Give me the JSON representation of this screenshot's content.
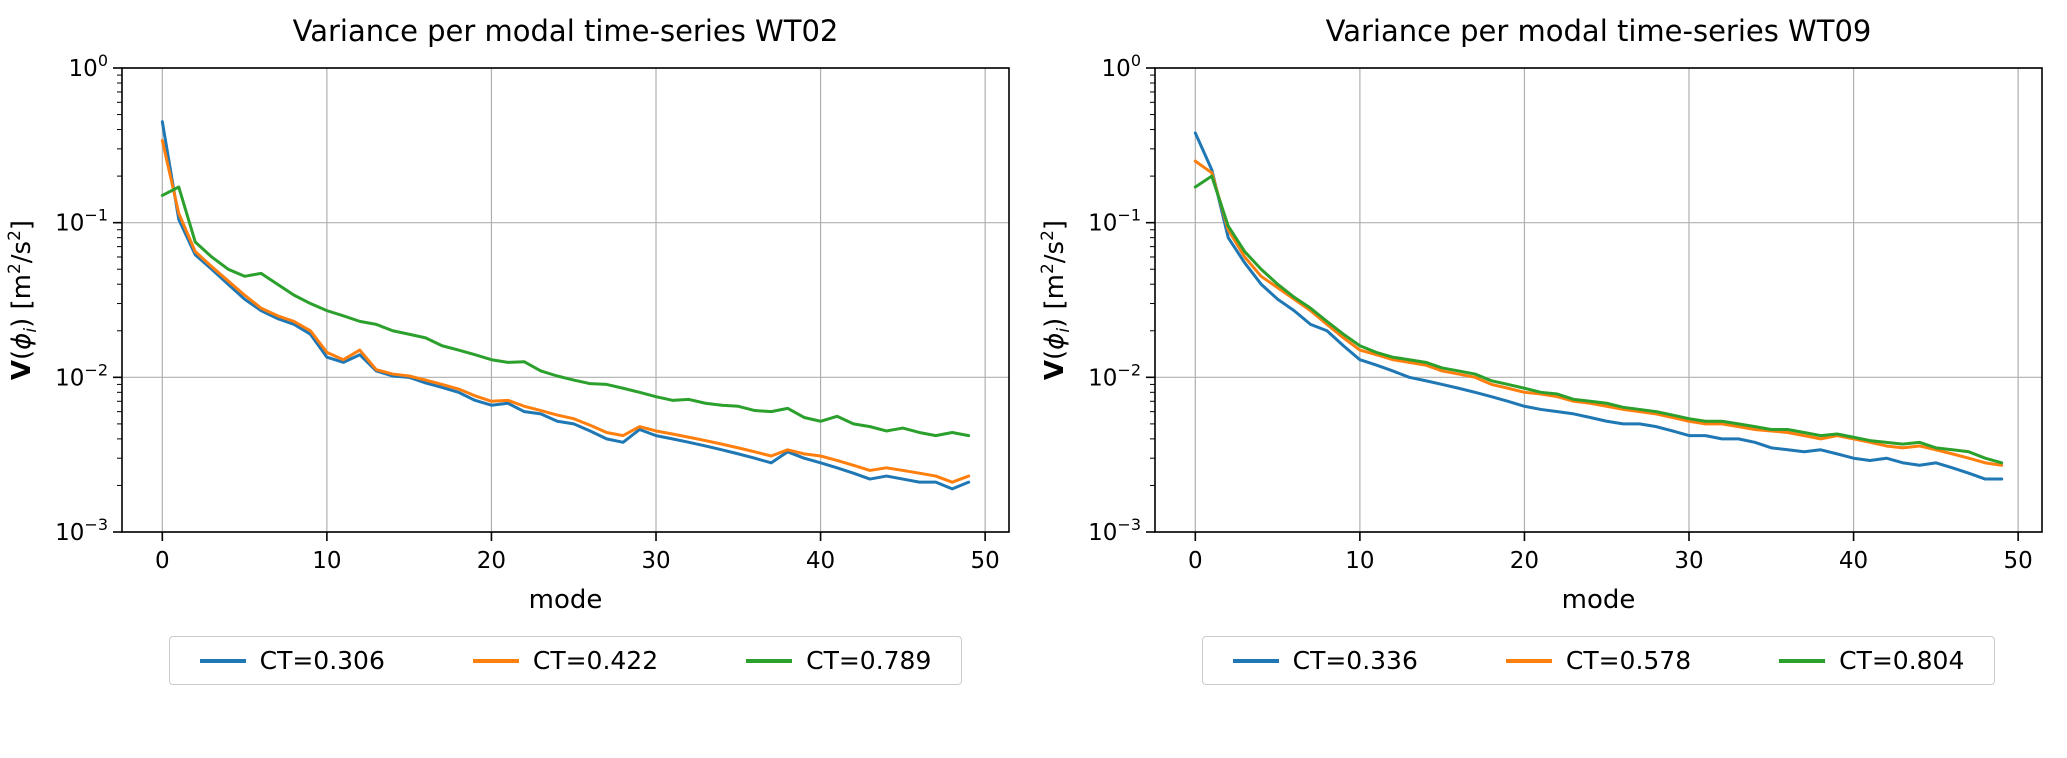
{
  "page": {
    "background": "#ffffff"
  },
  "colors": {
    "blue": "#1f77b4",
    "orange": "#ff7f0e",
    "green": "#2ca02c",
    "grid": "#b0b0b0",
    "axis": "#000000",
    "legend_border": "#cccccc"
  },
  "chart_data": [
    {
      "type": "line",
      "title": "Variance per modal time-series WT02",
      "xlabel": "mode",
      "ylabel_text": "V(ϕi) [m²/s²]",
      "ylabel_parts": [
        {
          "t": "V",
          "style": "bold"
        },
        {
          "t": "(",
          "style": "normal"
        },
        {
          "t": "ϕ",
          "style": "italic"
        },
        {
          "t": "i",
          "style": "sub-italic"
        },
        {
          "t": ") [m",
          "style": "normal"
        },
        {
          "t": "2",
          "style": "sup"
        },
        {
          "t": "/s",
          "style": "normal"
        },
        {
          "t": "2",
          "style": "sup"
        },
        {
          "t": "]",
          "style": "normal"
        }
      ],
      "yscale": "log",
      "grid": true,
      "legend_position": "below",
      "xlim": [
        -2.45,
        51.45
      ],
      "ylim": [
        0.001,
        1.0
      ],
      "ylim_exp": [
        -3,
        0
      ],
      "xticks": [
        0,
        10,
        20,
        30,
        40,
        50
      ],
      "yticks_exp": [
        0,
        -1,
        -2,
        -3
      ],
      "x": [
        0,
        1,
        2,
        3,
        4,
        5,
        6,
        7,
        8,
        9,
        10,
        11,
        12,
        13,
        14,
        15,
        16,
        17,
        18,
        19,
        20,
        21,
        22,
        23,
        24,
        25,
        26,
        27,
        28,
        29,
        30,
        31,
        32,
        33,
        34,
        35,
        36,
        37,
        38,
        39,
        40,
        41,
        42,
        43,
        44,
        45,
        46,
        47,
        48,
        49
      ],
      "series": [
        {
          "name": "CT=0.306",
          "color": "#1f77b4",
          "values": [
            0.45,
            0.105,
            0.062,
            0.05,
            0.04,
            0.032,
            0.027,
            0.024,
            0.022,
            0.019,
            0.0135,
            0.0125,
            0.014,
            0.011,
            0.0102,
            0.01,
            0.0092,
            0.0086,
            0.008,
            0.0071,
            0.0066,
            0.0068,
            0.006,
            0.0058,
            0.0052,
            0.005,
            0.0045,
            0.004,
            0.0038,
            0.0046,
            0.0042,
            0.004,
            0.0038,
            0.0036,
            0.0034,
            0.0032,
            0.003,
            0.0028,
            0.0033,
            0.003,
            0.0028,
            0.0026,
            0.0024,
            0.0022,
            0.0023,
            0.0022,
            0.0021,
            0.0021,
            0.0019,
            0.0021
          ]
        },
        {
          "name": "CT=0.422",
          "color": "#ff7f0e",
          "values": [
            0.34,
            0.115,
            0.065,
            0.052,
            0.042,
            0.034,
            0.028,
            0.025,
            0.023,
            0.02,
            0.0145,
            0.013,
            0.015,
            0.0112,
            0.0105,
            0.0102,
            0.0096,
            0.009,
            0.0084,
            0.0076,
            0.007,
            0.0071,
            0.0065,
            0.0061,
            0.0057,
            0.0054,
            0.0049,
            0.0044,
            0.0042,
            0.0048,
            0.0045,
            0.0043,
            0.0041,
            0.0039,
            0.0037,
            0.0035,
            0.0033,
            0.0031,
            0.0034,
            0.0032,
            0.0031,
            0.0029,
            0.0027,
            0.0025,
            0.0026,
            0.0025,
            0.0024,
            0.0023,
            0.0021,
            0.0023
          ]
        },
        {
          "name": "CT=0.789",
          "color": "#2ca02c",
          "values": [
            0.15,
            0.17,
            0.075,
            0.06,
            0.05,
            0.045,
            0.047,
            0.04,
            0.034,
            0.03,
            0.027,
            0.025,
            0.023,
            0.022,
            0.02,
            0.019,
            0.018,
            0.016,
            0.015,
            0.014,
            0.013,
            0.0125,
            0.0126,
            0.011,
            0.0102,
            0.0096,
            0.0091,
            0.009,
            0.0085,
            0.008,
            0.0075,
            0.0071,
            0.0072,
            0.0068,
            0.0066,
            0.0065,
            0.0061,
            0.006,
            0.0063,
            0.0055,
            0.0052,
            0.0056,
            0.005,
            0.0048,
            0.0045,
            0.0047,
            0.0044,
            0.0042,
            0.0044,
            0.0042
          ]
        }
      ]
    },
    {
      "type": "line",
      "title": "Variance per modal time-series WT09",
      "xlabel": "mode",
      "ylabel_text": "V(ϕi) [m²/s²]",
      "ylabel_parts": [
        {
          "t": "V",
          "style": "bold"
        },
        {
          "t": "(",
          "style": "normal"
        },
        {
          "t": "ϕ",
          "style": "italic"
        },
        {
          "t": "i",
          "style": "sub-italic"
        },
        {
          "t": ") [m",
          "style": "normal"
        },
        {
          "t": "2",
          "style": "sup"
        },
        {
          "t": "/s",
          "style": "normal"
        },
        {
          "t": "2",
          "style": "sup"
        },
        {
          "t": "]",
          "style": "normal"
        }
      ],
      "yscale": "log",
      "grid": true,
      "legend_position": "below",
      "xlim": [
        -2.45,
        51.45
      ],
      "ylim": [
        0.001,
        1.0
      ],
      "ylim_exp": [
        -3,
        0
      ],
      "xticks": [
        0,
        10,
        20,
        30,
        40,
        50
      ],
      "yticks_exp": [
        0,
        -1,
        -2,
        -3
      ],
      "x": [
        0,
        1,
        2,
        3,
        4,
        5,
        6,
        7,
        8,
        9,
        10,
        11,
        12,
        13,
        14,
        15,
        16,
        17,
        18,
        19,
        20,
        21,
        22,
        23,
        24,
        25,
        26,
        27,
        28,
        29,
        30,
        31,
        32,
        33,
        34,
        35,
        36,
        37,
        38,
        39,
        40,
        41,
        42,
        43,
        44,
        45,
        46,
        47,
        48,
        49
      ],
      "series": [
        {
          "name": "CT=0.336",
          "color": "#1f77b4",
          "values": [
            0.38,
            0.22,
            0.08,
            0.055,
            0.04,
            0.032,
            0.027,
            0.022,
            0.02,
            0.016,
            0.013,
            0.012,
            0.011,
            0.01,
            0.0095,
            0.009,
            0.0085,
            0.008,
            0.0075,
            0.007,
            0.0065,
            0.0062,
            0.006,
            0.0058,
            0.0055,
            0.0052,
            0.005,
            0.005,
            0.0048,
            0.0045,
            0.0042,
            0.0042,
            0.004,
            0.004,
            0.0038,
            0.0035,
            0.0034,
            0.0033,
            0.0034,
            0.0032,
            0.003,
            0.0029,
            0.003,
            0.0028,
            0.0027,
            0.0028,
            0.0026,
            0.0024,
            0.0022,
            0.0022
          ]
        },
        {
          "name": "CT=0.578",
          "color": "#ff7f0e",
          "values": [
            0.25,
            0.21,
            0.09,
            0.06,
            0.045,
            0.038,
            0.032,
            0.027,
            0.022,
            0.018,
            0.015,
            0.014,
            0.013,
            0.0125,
            0.012,
            0.011,
            0.0105,
            0.01,
            0.009,
            0.0085,
            0.008,
            0.0078,
            0.0075,
            0.007,
            0.0068,
            0.0065,
            0.0062,
            0.006,
            0.0058,
            0.0055,
            0.0052,
            0.005,
            0.005,
            0.0048,
            0.0046,
            0.0045,
            0.0044,
            0.0042,
            0.004,
            0.0042,
            0.004,
            0.0038,
            0.0036,
            0.0035,
            0.0036,
            0.0034,
            0.0032,
            0.003,
            0.0028,
            0.0027
          ]
        },
        {
          "name": "CT=0.804",
          "color": "#2ca02c",
          "values": [
            0.17,
            0.2,
            0.095,
            0.065,
            0.05,
            0.04,
            0.033,
            0.028,
            0.023,
            0.019,
            0.016,
            0.0145,
            0.0135,
            0.013,
            0.0125,
            0.0115,
            0.011,
            0.0105,
            0.0095,
            0.009,
            0.0085,
            0.008,
            0.0078,
            0.0072,
            0.007,
            0.0068,
            0.0064,
            0.0062,
            0.006,
            0.0057,
            0.0054,
            0.0052,
            0.0052,
            0.005,
            0.0048,
            0.0046,
            0.0046,
            0.0044,
            0.0042,
            0.0043,
            0.0041,
            0.0039,
            0.0038,
            0.0037,
            0.0038,
            0.0035,
            0.0034,
            0.0033,
            0.003,
            0.0028
          ]
        }
      ]
    }
  ]
}
